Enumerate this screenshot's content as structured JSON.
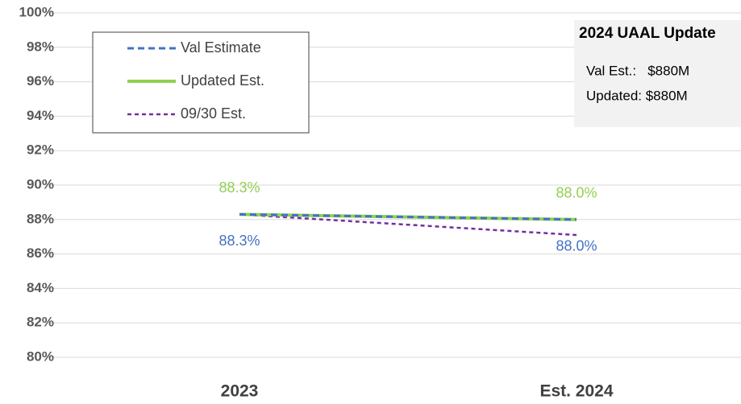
{
  "chart_data": {
    "type": "line",
    "categories": [
      "2023",
      "Est. 2024"
    ],
    "series": [
      {
        "name": "Val Estimate",
        "color": "#4472c4",
        "dash": "dashed",
        "values": [
          88.3,
          88.0
        ],
        "value_labels": [
          "88.3%",
          "88.0%"
        ],
        "label_position": "below"
      },
      {
        "name": "Updated Est.",
        "color": "#92d050",
        "dash": "solid",
        "values": [
          88.3,
          88.0
        ],
        "value_labels": [
          "88.3%",
          "88.0%"
        ],
        "label_position": "above"
      },
      {
        "name": "09/30 Est.",
        "color": "#7030a0",
        "dash": "dotted",
        "values": [
          88.3,
          87.1
        ]
      }
    ],
    "ylim": [
      80,
      100
    ],
    "yticks": [
      {
        "value": 80,
        "label": "80%"
      },
      {
        "value": 82,
        "label": "82%"
      },
      {
        "value": 84,
        "label": "84%"
      },
      {
        "value": 86,
        "label": "86%"
      },
      {
        "value": 88,
        "label": "88%"
      },
      {
        "value": 90,
        "label": "90%"
      },
      {
        "value": 92,
        "label": "92%"
      },
      {
        "value": 94,
        "label": "94%"
      },
      {
        "value": 96,
        "label": "96%"
      },
      {
        "value": 98,
        "label": "98%"
      },
      {
        "value": 100,
        "label": "100%"
      }
    ],
    "grid": true,
    "legend": "upper left",
    "annotation": {
      "title": "2024 UAAL Update",
      "lines": [
        "Val Est.:   $880M",
        "Updated: $880M"
      ]
    }
  }
}
